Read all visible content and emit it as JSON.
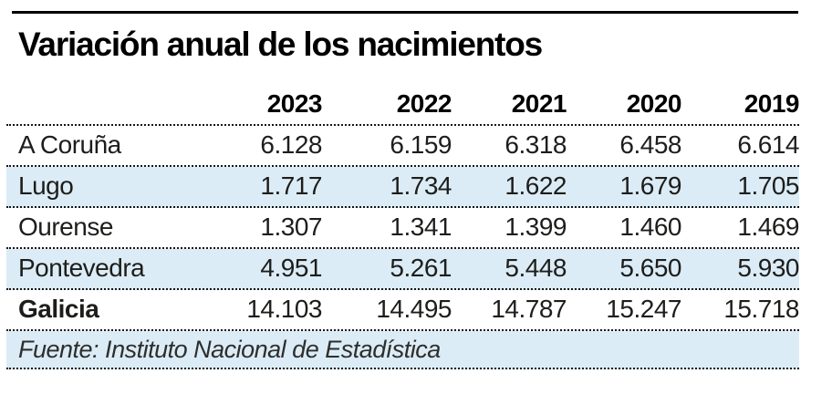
{
  "title": "Variación anual de los nacimientos",
  "colors": {
    "band_blue": "#dbecf6",
    "rule_black": "#000000",
    "text": "#1d1d1b"
  },
  "table": {
    "years": [
      "2023",
      "2022",
      "2021",
      "2020",
      "2019"
    ],
    "rows": [
      {
        "name": "A Coruña",
        "values": [
          "6.128",
          "6.159",
          "6.318",
          "6.458",
          "6.614"
        ]
      },
      {
        "name": "Lugo",
        "values": [
          "1.717",
          "1.734",
          "1.622",
          "1.679",
          "1.705"
        ]
      },
      {
        "name": "Ourense",
        "values": [
          "1.307",
          "1.341",
          "1.399",
          "1.460",
          "1.469"
        ]
      },
      {
        "name": "Pontevedra",
        "values": [
          "4.951",
          "5.261",
          "5.448",
          "5.650",
          "5.930"
        ]
      },
      {
        "name": "Galicia",
        "values": [
          "14.103",
          "14.495",
          "14.787",
          "15.247",
          "15.718"
        ]
      }
    ],
    "source": "Fuente: Instituto Nacional de Estadística"
  },
  "chart_data": {
    "type": "table",
    "title": "Variación anual de los nacimientos",
    "columns": [
      "2023",
      "2022",
      "2021",
      "2020",
      "2019"
    ],
    "series": [
      {
        "name": "A Coruña",
        "values": [
          6128,
          6159,
          6318,
          6458,
          6614
        ]
      },
      {
        "name": "Lugo",
        "values": [
          1717,
          1734,
          1622,
          1679,
          1705
        ]
      },
      {
        "name": "Ourense",
        "values": [
          1307,
          1341,
          1399,
          1460,
          1469
        ]
      },
      {
        "name": "Pontevedra",
        "values": [
          4951,
          5261,
          5448,
          5650,
          5930
        ]
      },
      {
        "name": "Galicia",
        "values": [
          14103,
          14495,
          14787,
          15247,
          15718
        ]
      }
    ],
    "source": "Fuente: Instituto Nacional de Estadística",
    "layout": "rows shaded alternately pale blue; dotted black separators; bold year headers"
  }
}
